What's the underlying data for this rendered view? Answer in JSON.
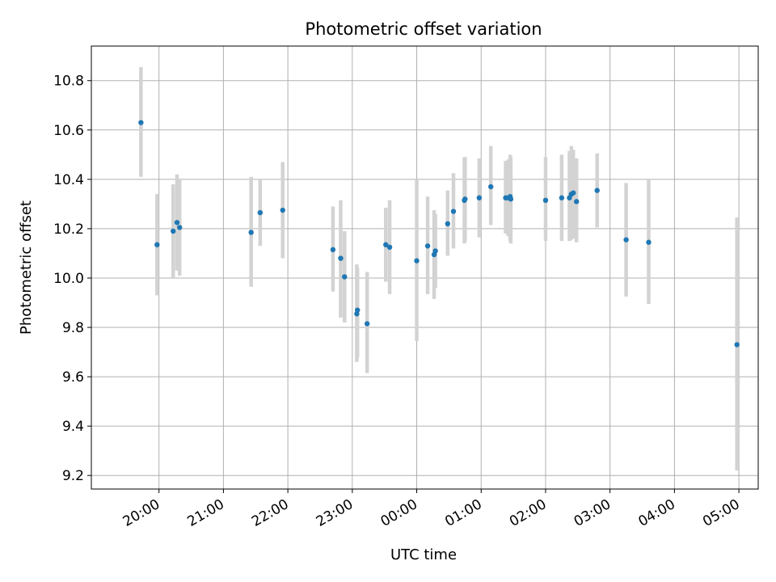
{
  "chart_data": {
    "type": "scatter",
    "title": "Photometric offset variation",
    "xlabel": "UTC time",
    "ylabel": "Photometric offset",
    "grid": true,
    "xlim_hours": [
      18.95,
      29.3
    ],
    "ylim": [
      9.145,
      10.94
    ],
    "x_ticks": [
      {
        "hour": 20,
        "label": "20:00"
      },
      {
        "hour": 21,
        "label": "21:00"
      },
      {
        "hour": 22,
        "label": "22:00"
      },
      {
        "hour": 23,
        "label": "23:00"
      },
      {
        "hour": 24,
        "label": "00:00"
      },
      {
        "hour": 25,
        "label": "01:00"
      },
      {
        "hour": 26,
        "label": "02:00"
      },
      {
        "hour": 27,
        "label": "03:00"
      },
      {
        "hour": 28,
        "label": "04:00"
      },
      {
        "hour": 29,
        "label": "05:00"
      }
    ],
    "y_ticks": [
      {
        "value": 9.2,
        "label": "9.2"
      },
      {
        "value": 9.4,
        "label": "9.4"
      },
      {
        "value": 9.6,
        "label": "9.6"
      },
      {
        "value": 9.8,
        "label": "9.8"
      },
      {
        "value": 10.0,
        "label": "10.0"
      },
      {
        "value": 10.2,
        "label": "10.2"
      },
      {
        "value": 10.4,
        "label": "10.4"
      },
      {
        "value": 10.6,
        "label": "10.6"
      },
      {
        "value": 10.8,
        "label": "10.8"
      }
    ],
    "point_color": "#1f77b4",
    "errorbar_color": "#d3d3d3",
    "points": [
      {
        "x": 19.72,
        "y": 10.63,
        "lo": 10.41,
        "hi": 10.855
      },
      {
        "x": 19.97,
        "y": 10.135,
        "lo": 9.93,
        "hi": 10.34
      },
      {
        "x": 20.22,
        "y": 10.19,
        "lo": 10.0,
        "hi": 10.38
      },
      {
        "x": 20.28,
        "y": 10.225,
        "lo": 10.03,
        "hi": 10.42
      },
      {
        "x": 20.32,
        "y": 10.205,
        "lo": 10.01,
        "hi": 10.4
      },
      {
        "x": 21.43,
        "y": 10.185,
        "lo": 9.965,
        "hi": 10.41
      },
      {
        "x": 21.57,
        "y": 10.265,
        "lo": 10.13,
        "hi": 10.4
      },
      {
        "x": 21.92,
        "y": 10.275,
        "lo": 10.08,
        "hi": 10.47
      },
      {
        "x": 22.7,
        "y": 10.115,
        "lo": 9.945,
        "hi": 10.29
      },
      {
        "x": 22.82,
        "y": 10.08,
        "lo": 9.84,
        "hi": 10.315
      },
      {
        "x": 22.88,
        "y": 10.005,
        "lo": 9.82,
        "hi": 10.19
      },
      {
        "x": 23.07,
        "y": 9.855,
        "lo": 9.66,
        "hi": 10.055
      },
      {
        "x": 23.08,
        "y": 9.87,
        "lo": 9.68,
        "hi": 10.04
      },
      {
        "x": 23.23,
        "y": 9.815,
        "lo": 9.615,
        "hi": 10.025
      },
      {
        "x": 23.52,
        "y": 10.135,
        "lo": 9.985,
        "hi": 10.285
      },
      {
        "x": 23.58,
        "y": 10.125,
        "lo": 9.935,
        "hi": 10.315
      },
      {
        "x": 24.0,
        "y": 10.07,
        "lo": 9.745,
        "hi": 10.4
      },
      {
        "x": 24.17,
        "y": 10.13,
        "lo": 9.935,
        "hi": 10.33
      },
      {
        "x": 24.27,
        "y": 10.095,
        "lo": 9.915,
        "hi": 10.275
      },
      {
        "x": 24.29,
        "y": 10.11,
        "lo": 9.96,
        "hi": 10.26
      },
      {
        "x": 24.48,
        "y": 10.22,
        "lo": 10.09,
        "hi": 10.355
      },
      {
        "x": 24.57,
        "y": 10.27,
        "lo": 10.12,
        "hi": 10.425
      },
      {
        "x": 24.74,
        "y": 10.315,
        "lo": 10.14,
        "hi": 10.49
      },
      {
        "x": 24.75,
        "y": 10.32,
        "lo": 10.15,
        "hi": 10.49
      },
      {
        "x": 24.97,
        "y": 10.325,
        "lo": 10.165,
        "hi": 10.485
      },
      {
        "x": 25.15,
        "y": 10.37,
        "lo": 10.215,
        "hi": 10.535
      },
      {
        "x": 25.38,
        "y": 10.325,
        "lo": 10.18,
        "hi": 10.475
      },
      {
        "x": 25.42,
        "y": 10.325,
        "lo": 10.17,
        "hi": 10.48
      },
      {
        "x": 25.45,
        "y": 10.33,
        "lo": 10.15,
        "hi": 10.5
      },
      {
        "x": 25.46,
        "y": 10.32,
        "lo": 10.14,
        "hi": 10.49
      },
      {
        "x": 26.0,
        "y": 10.315,
        "lo": 10.15,
        "hi": 10.49
      },
      {
        "x": 26.25,
        "y": 10.325,
        "lo": 10.15,
        "hi": 10.5
      },
      {
        "x": 26.37,
        "y": 10.325,
        "lo": 10.15,
        "hi": 10.515
      },
      {
        "x": 26.4,
        "y": 10.34,
        "lo": 10.155,
        "hi": 10.535
      },
      {
        "x": 26.43,
        "y": 10.345,
        "lo": 10.16,
        "hi": 10.52
      },
      {
        "x": 26.48,
        "y": 10.31,
        "lo": 10.145,
        "hi": 10.485
      },
      {
        "x": 26.8,
        "y": 10.355,
        "lo": 10.205,
        "hi": 10.505
      },
      {
        "x": 27.25,
        "y": 10.155,
        "lo": 9.925,
        "hi": 10.385
      },
      {
        "x": 27.6,
        "y": 10.145,
        "lo": 9.895,
        "hi": 10.4
      },
      {
        "x": 28.97,
        "y": 9.73,
        "lo": 9.22,
        "hi": 10.245
      }
    ]
  }
}
